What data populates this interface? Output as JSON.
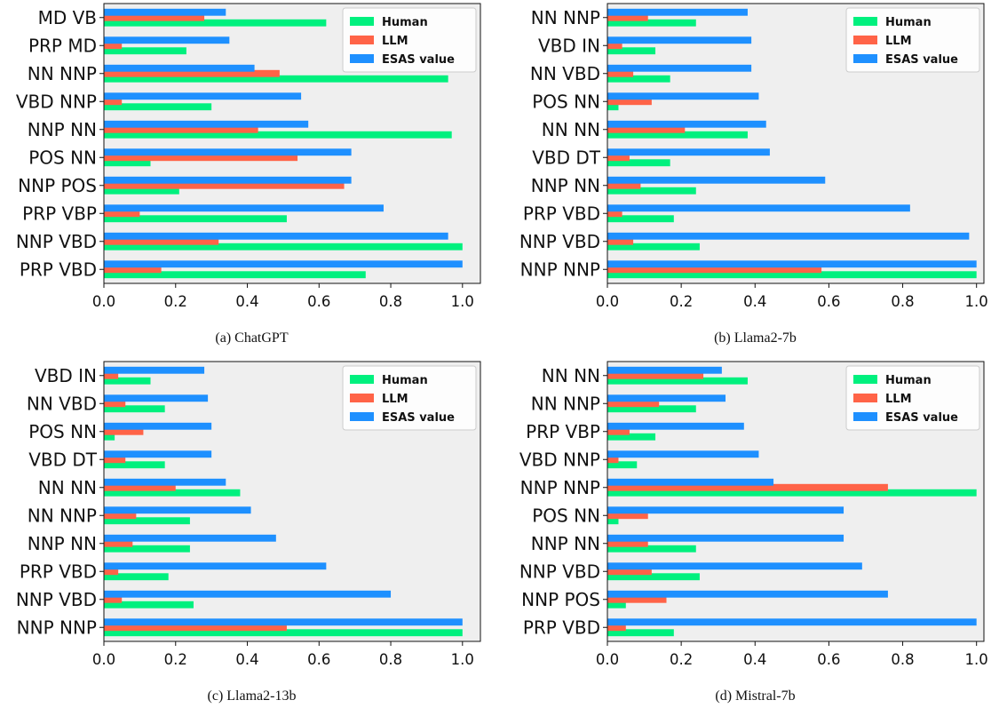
{
  "colors": {
    "human": "#00f07e",
    "llm": "#ff6347",
    "esas": "#1e90ff",
    "plot_bg": "#efefef"
  },
  "chart_data": [
    {
      "type": "bar",
      "orientation": "horizontal",
      "caption": "(a) ChatGPT",
      "categories": [
        "MD VB",
        "PRP MD",
        "NN NNP",
        "VBD NNP",
        "NNP NN",
        "POS NN",
        "NNP POS",
        "PRP VBP",
        "NNP VBD",
        "PRP VBD"
      ],
      "series": [
        {
          "name": "Human",
          "values": [
            0.62,
            0.23,
            0.96,
            0.3,
            0.97,
            0.13,
            0.21,
            0.51,
            1.0,
            0.73
          ]
        },
        {
          "name": "LLM",
          "values": [
            0.28,
            0.05,
            0.49,
            0.05,
            0.43,
            0.54,
            0.67,
            0.1,
            0.32,
            0.16
          ]
        },
        {
          "name": "ESAS value",
          "values": [
            0.34,
            0.35,
            0.42,
            0.55,
            0.57,
            0.69,
            0.69,
            0.78,
            0.96,
            1.0
          ]
        }
      ],
      "xlim": [
        0,
        1.05
      ],
      "xticks": [
        "0.0",
        "0.2",
        "0.4",
        "0.6",
        "0.8",
        "1.0"
      ],
      "legend_position": "top-right"
    },
    {
      "type": "bar",
      "orientation": "horizontal",
      "caption": "(b) Llama2-7b",
      "categories": [
        "NN NNP",
        "VBD IN",
        "NN VBD",
        "POS NN",
        "NN NN",
        "VBD DT",
        "NNP NN",
        "PRP VBD",
        "NNP VBD",
        "NNP NNP"
      ],
      "series": [
        {
          "name": "Human",
          "values": [
            0.24,
            0.13,
            0.17,
            0.03,
            0.38,
            0.17,
            0.24,
            0.18,
            0.25,
            1.0
          ]
        },
        {
          "name": "LLM",
          "values": [
            0.11,
            0.04,
            0.07,
            0.12,
            0.21,
            0.06,
            0.09,
            0.04,
            0.07,
            0.58
          ]
        },
        {
          "name": "ESAS value",
          "values": [
            0.38,
            0.39,
            0.39,
            0.41,
            0.43,
            0.44,
            0.59,
            0.82,
            0.98,
            1.0
          ]
        }
      ],
      "xlim": [
        0,
        1.02
      ],
      "xticks": [
        "0.0",
        "0.2",
        "0.4",
        "0.6",
        "0.8",
        "1.0"
      ],
      "legend_position": "top-right"
    },
    {
      "type": "bar",
      "orientation": "horizontal",
      "caption": "(c) Llama2-13b",
      "categories": [
        "VBD IN",
        "NN VBD",
        "POS NN",
        "VBD DT",
        "NN NN",
        "NN NNP",
        "NNP NN",
        "PRP VBD",
        "NNP VBD",
        "NNP NNP"
      ],
      "series": [
        {
          "name": "Human",
          "values": [
            0.13,
            0.17,
            0.03,
            0.17,
            0.38,
            0.24,
            0.24,
            0.18,
            0.25,
            1.0
          ]
        },
        {
          "name": "LLM",
          "values": [
            0.04,
            0.06,
            0.11,
            0.06,
            0.2,
            0.09,
            0.08,
            0.04,
            0.05,
            0.51
          ]
        },
        {
          "name": "ESAS value",
          "values": [
            0.28,
            0.29,
            0.3,
            0.3,
            0.34,
            0.41,
            0.48,
            0.62,
            0.8,
            1.0
          ]
        }
      ],
      "xlim": [
        0,
        1.05
      ],
      "xticks": [
        "0.0",
        "0.2",
        "0.4",
        "0.6",
        "0.8",
        "1.0"
      ],
      "legend_position": "top-right"
    },
    {
      "type": "bar",
      "orientation": "horizontal",
      "caption": "(d) Mistral-7b",
      "categories": [
        "NN NN",
        "NN NNP",
        "PRP VBP",
        "VBD NNP",
        "NNP NNP",
        "POS NN",
        "NNP NN",
        "NNP VBD",
        "NNP POS",
        "PRP VBD"
      ],
      "series": [
        {
          "name": "Human",
          "values": [
            0.38,
            0.24,
            0.13,
            0.08,
            1.0,
            0.03,
            0.24,
            0.25,
            0.05,
            0.18
          ]
        },
        {
          "name": "LLM",
          "values": [
            0.26,
            0.14,
            0.06,
            0.03,
            0.76,
            0.11,
            0.11,
            0.12,
            0.16,
            0.05
          ]
        },
        {
          "name": "ESAS value",
          "values": [
            0.31,
            0.32,
            0.37,
            0.41,
            0.45,
            0.64,
            0.64,
            0.69,
            0.76,
            1.0
          ]
        }
      ],
      "xlim": [
        0,
        1.02
      ],
      "xticks": [
        "0.0",
        "0.2",
        "0.4",
        "0.6",
        "0.8",
        "1.0"
      ],
      "legend_position": "top-right"
    }
  ]
}
